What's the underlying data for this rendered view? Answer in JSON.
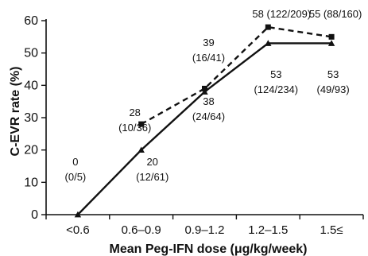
{
  "chart_data": {
    "type": "line",
    "xlabel": "Mean Peg-IFN dose (μg/kg/week)",
    "ylabel": "C-EVR rate (%)",
    "ylim": [
      0,
      60
    ],
    "yticks": [
      0,
      10,
      20,
      30,
      40,
      50,
      60
    ],
    "categories": [
      "<0.6",
      "0.6–0.9",
      "0.9–1.2",
      "1.2–1.5",
      "1.5≤"
    ],
    "grid": false,
    "series": [
      {
        "style": "solid",
        "marker": "triangle",
        "values": [
          0,
          20,
          38,
          53,
          53
        ],
        "labels": [
          [
            "0",
            "(0/5)"
          ],
          [
            "20",
            "(12/61)"
          ],
          [
            "38",
            "(24/64)"
          ],
          [
            "53",
            "(124/234)"
          ],
          [
            "53",
            "(49/93)"
          ]
        ]
      },
      {
        "style": "dashed",
        "marker": "square",
        "values": [
          null,
          28,
          39,
          58,
          55
        ],
        "labels": [
          null,
          [
            "28",
            "(10/36)"
          ],
          [
            "39",
            "(16/41)"
          ],
          [
            "58 (122/209)"
          ],
          [
            "55 (88/160)"
          ]
        ]
      }
    ],
    "colors": {
      "line": "#111111",
      "background": "#ffffff"
    }
  }
}
